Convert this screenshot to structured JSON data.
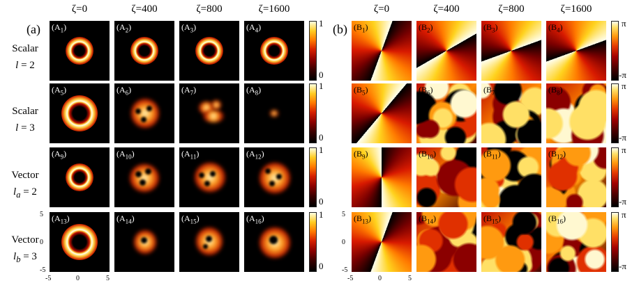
{
  "panel_a_label": "(a)",
  "panel_b_label": "(b)",
  "columns_a": [
    "ζ=0",
    "ζ=400",
    "ζ=800",
    "ζ=1600"
  ],
  "columns_b": [
    "ζ=0",
    "ζ=400",
    "ζ=800",
    "ζ=1600"
  ],
  "rows": [
    {
      "line1": "Scalar",
      "line2_var": "l",
      "line2_sub": "",
      "line2_val": " = 2"
    },
    {
      "line1": "Scalar",
      "line2_var": "l",
      "line2_sub": "",
      "line2_val": " = 3"
    },
    {
      "line1": "Vector",
      "line2_var": "l",
      "line2_sub": "a",
      "line2_val": " = 2"
    },
    {
      "line1": "Vector",
      "line2_var": "l",
      "line2_sub": "b",
      "line2_val": " = 3"
    }
  ],
  "tags_a": [
    "A",
    "1",
    "A",
    "2",
    "A",
    "3",
    "A",
    "4",
    "A",
    "5",
    "A",
    "6",
    "A",
    "7",
    "A",
    "8",
    "A",
    "9",
    "A",
    "10",
    "A",
    "11",
    "A",
    "12",
    "A",
    "13",
    "A",
    "14",
    "A",
    "15",
    "A",
    "16"
  ],
  "tags_b": [
    "B",
    "1",
    "B",
    "2",
    "B",
    "3",
    "B",
    "4",
    "B",
    "5",
    "B",
    "6",
    "B",
    "7",
    "B",
    "8",
    "B",
    "9",
    "B",
    "10",
    "B",
    "11",
    "B",
    "12",
    "B",
    "13",
    "B",
    "14",
    "B",
    "15",
    "B",
    "16"
  ],
  "colorbar_a": {
    "top": "1",
    "bottom": "0"
  },
  "colorbar_b": {
    "top": "π",
    "bottom": "-π"
  },
  "axis_ticks": {
    "x": [
      "-5",
      "0",
      "5"
    ],
    "y": [
      "5",
      "0",
      "-5"
    ]
  },
  "colors": {
    "dark": "#000000",
    "red": "#c00000",
    "orange": "#ff8000",
    "yellow": "#ffee44",
    "white": "#fffff0"
  }
}
